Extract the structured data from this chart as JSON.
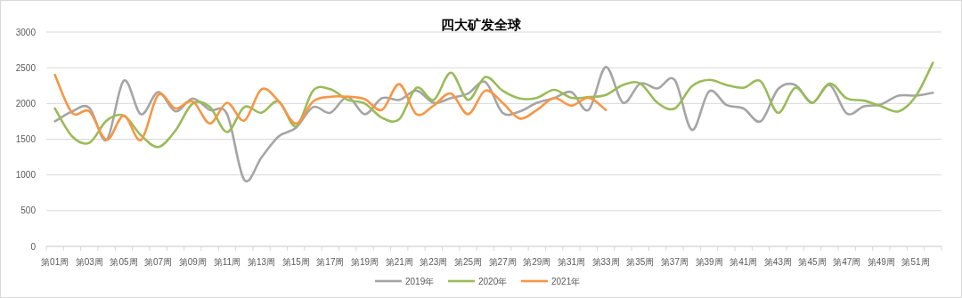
{
  "chart_data": {
    "type": "line",
    "title": "四大矿发全球",
    "categories": [
      "第01周",
      null,
      "第03周",
      null,
      "第05周",
      null,
      "第07周",
      null,
      "第09周",
      null,
      "第11周",
      null,
      "第13周",
      null,
      "第15周",
      null,
      "第17周",
      null,
      "第19周",
      null,
      "第21周",
      null,
      "第23周",
      null,
      "第25周",
      null,
      "第27周",
      null,
      "第29周",
      null,
      "第31周",
      null,
      "第33周",
      null,
      "第35周",
      null,
      "第37周",
      null,
      "第39周",
      null,
      "第41周",
      null,
      "第43周",
      null,
      "第45周",
      null,
      "第47周",
      null,
      "第49周",
      null,
      "第51周",
      null
    ],
    "series": [
      {
        "name": "2019年",
        "color": "#a5a5a5",
        "values": [
          1750,
          1890,
          1940,
          1490,
          2320,
          1850,
          2160,
          1890,
          2070,
          1910,
          1850,
          930,
          1245,
          1540,
          1660,
          1950,
          1870,
          2095,
          1850,
          2075,
          2050,
          2180,
          2010,
          2075,
          2140,
          2300,
          1870,
          1890,
          2010,
          2075,
          2160,
          1910,
          2510,
          2010,
          2280,
          2210,
          2330,
          1630,
          2170,
          1980,
          1930,
          1750,
          2200,
          2260,
          2010,
          2260,
          1860,
          1960,
          1990,
          2110,
          2110,
          2150
        ]
      },
      {
        "name": "2020年",
        "color": "#9bbb59",
        "values": [
          1930,
          1540,
          1450,
          1760,
          1830,
          1555,
          1390,
          1620,
          2000,
          1950,
          1600,
          1950,
          1870,
          2030,
          1680,
          2180,
          2200,
          2050,
          2000,
          1800,
          1780,
          2220,
          2050,
          2430,
          2050,
          2370,
          2180,
          2070,
          2080,
          2190,
          2080,
          2090,
          2120,
          2260,
          2280,
          2010,
          1930,
          2240,
          2330,
          2260,
          2220,
          2310,
          1870,
          2220,
          2010,
          2280,
          2070,
          2040,
          1960,
          1890,
          2100,
          2570
        ]
      },
      {
        "name": "2021年",
        "color": "#f79646",
        "values": [
          2400,
          1870,
          1890,
          1490,
          1830,
          1490,
          2120,
          1930,
          2030,
          1720,
          2010,
          1760,
          2200,
          2030,
          1720,
          2030,
          2095,
          2095,
          2060,
          1910,
          2270,
          1850,
          1970,
          2140,
          1850,
          2180,
          2010,
          1790,
          1910,
          2075,
          1970,
          2080,
          1910,
          null,
          null,
          null,
          null,
          null,
          null,
          null,
          null,
          null,
          null,
          null,
          null,
          null,
          null,
          null,
          null,
          null,
          null,
          null
        ]
      }
    ],
    "ylim": [
      0,
      3000
    ],
    "yticks": [
      0,
      500,
      1000,
      1500,
      2000,
      2500,
      3000
    ],
    "grid": "y",
    "legend": "bottom"
  }
}
